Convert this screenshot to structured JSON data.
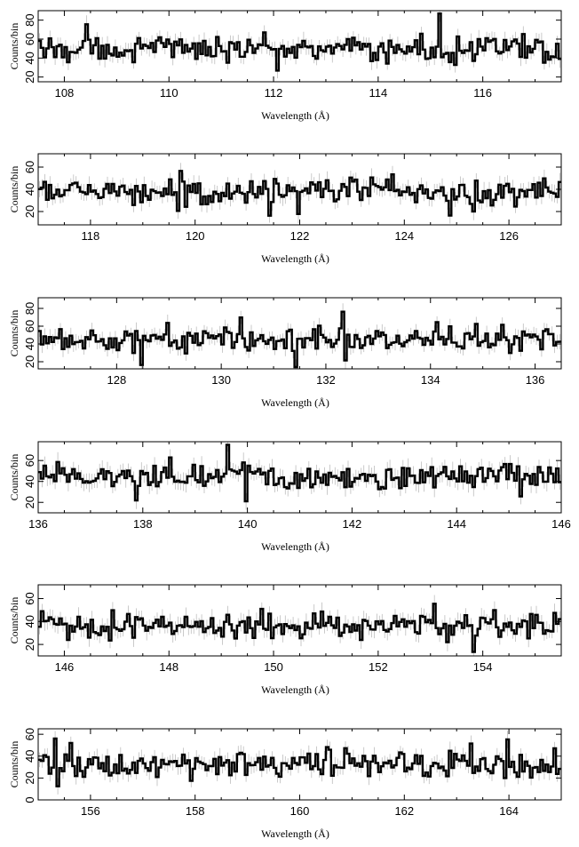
{
  "chart_data": [
    {
      "type": "line",
      "style": "step-histogram with grey error bars",
      "xlabel": "Wavelength (Å)",
      "ylabel": "Counts/bin",
      "xlim": [
        107.5,
        117.5
      ],
      "ylim": [
        15,
        90
      ],
      "xticks": [
        108,
        110,
        112,
        114,
        116
      ],
      "yticks": [
        20,
        40,
        60,
        80
      ],
      "mean_counts": 50,
      "typical_error": 8
    },
    {
      "type": "line",
      "style": "step-histogram with grey error bars",
      "xlabel": "Wavelength (Å)",
      "ylabel": "Counts/bin",
      "xlim": [
        117,
        127
      ],
      "ylim": [
        8,
        72
      ],
      "xticks": [
        118,
        120,
        122,
        124,
        126
      ],
      "yticks": [
        20,
        40,
        60
      ],
      "mean_counts": 38,
      "typical_error": 7
    },
    {
      "type": "line",
      "style": "step-histogram with grey error bars",
      "xlabel": "Wavelength (Å)",
      "ylabel": "Counts/bin",
      "xlim": [
        126.5,
        136.5
      ],
      "ylim": [
        12,
        92
      ],
      "xticks": [
        128,
        130,
        132,
        134,
        136
      ],
      "yticks": [
        20,
        40,
        60,
        80
      ],
      "mean_counts": 45,
      "typical_error": 8
    },
    {
      "type": "line",
      "style": "step-histogram with grey error bars",
      "xlabel": "Wavelength (Å)",
      "ylabel": "Counts/bin",
      "xlim": [
        136,
        146
      ],
      "ylim": [
        10,
        78
      ],
      "xticks": [
        136,
        138,
        140,
        142,
        144,
        146
      ],
      "yticks": [
        20,
        40,
        60
      ],
      "mean_counts": 45,
      "typical_error": 8
    },
    {
      "type": "line",
      "style": "step-histogram with grey error bars",
      "xlabel": "Wavelength (Å)",
      "ylabel": "Counts/bin",
      "xlim": [
        145.5,
        155.5
      ],
      "ylim": [
        10,
        72
      ],
      "xticks": [
        146,
        148,
        150,
        152,
        154
      ],
      "yticks": [
        20,
        40,
        60
      ],
      "mean_counts": 37,
      "typical_error": 7
    },
    {
      "type": "line",
      "style": "step-histogram with grey error bars",
      "xlabel": "Wavelength (Å)",
      "ylabel": "Counts/bin",
      "xlim": [
        155,
        165
      ],
      "ylim": [
        0,
        65
      ],
      "xticks": [
        156,
        158,
        160,
        162,
        164
      ],
      "yticks": [
        0,
        20,
        40,
        60
      ],
      "mean_counts": 32,
      "typical_error": 7
    }
  ]
}
